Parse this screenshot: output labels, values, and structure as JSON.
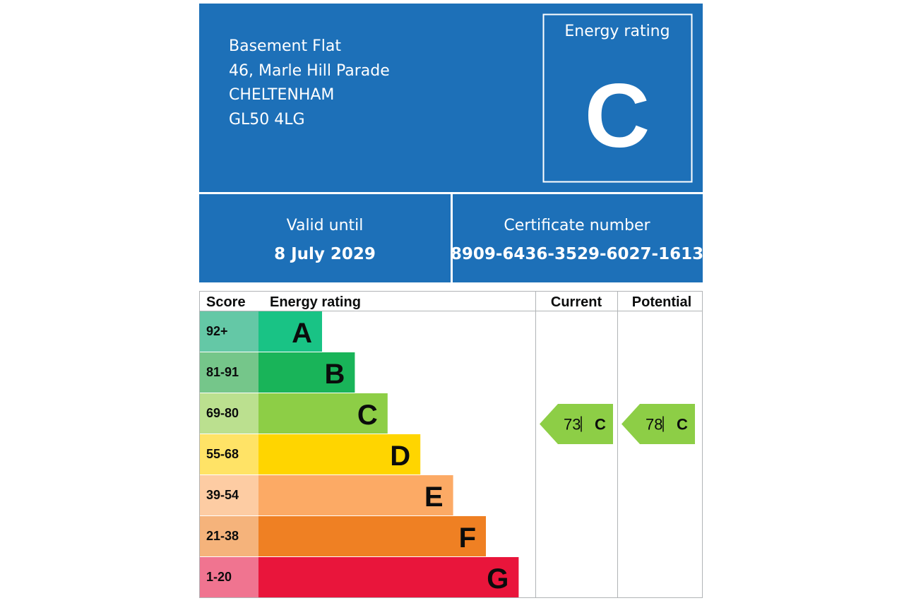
{
  "header": {
    "address": [
      "Basement Flat",
      "46, Marle Hill Parade",
      "CHELTENHAM",
      "GL50 4LG"
    ],
    "rating_label": "Energy rating",
    "rating": "C"
  },
  "validity": {
    "label": "Valid until",
    "date": "8 July 2029"
  },
  "certificate": {
    "label": "Certificate number",
    "number": "8909-6436-3529-6027-1613"
  },
  "table": {
    "headers": [
      "Score",
      "Energy rating",
      "Current",
      "Potential"
    ],
    "rows": [
      {
        "score": "92+",
        "band": "A",
        "color": "#19c385",
        "score_color": "#64c8a6"
      },
      {
        "score": "81-91",
        "band": "B",
        "color": "#19b459",
        "score_color": "#75c68a"
      },
      {
        "score": "69-80",
        "band": "C",
        "color": "#8dce46",
        "score_color": "#bbe08f"
      },
      {
        "score": "55-68",
        "band": "D",
        "color": "#ffd500",
        "score_color": "#ffe366"
      },
      {
        "score": "39-54",
        "band": "E",
        "color": "#fcaa65",
        "score_color": "#fdcca3"
      },
      {
        "score": "21-38",
        "band": "F",
        "color": "#ef8023",
        "score_color": "#f5b37b"
      },
      {
        "score": "1-20",
        "band": "G",
        "color": "#e9153b",
        "score_color": "#f07490"
      }
    ],
    "current": {
      "score": 73,
      "band": "C"
    },
    "potential": {
      "score": 78,
      "band": "C"
    }
  }
}
